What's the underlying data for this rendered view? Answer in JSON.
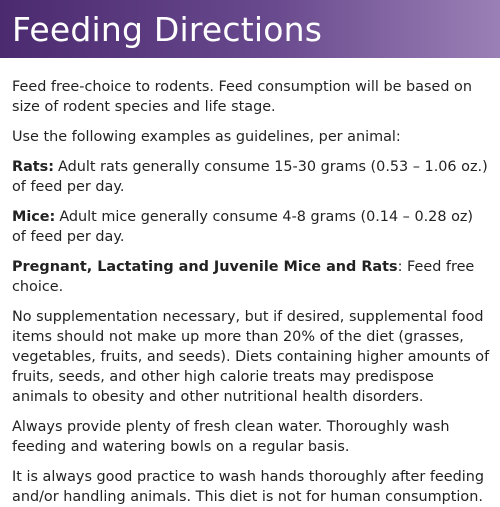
{
  "header": {
    "title": "Feeding Directions"
  },
  "paragraphs": [
    {
      "text": "Feed free-choice to rodents. Feed consumption will be based on size of rodent species and life stage."
    },
    {
      "text": "Use the following examples as guidelines, per animal:"
    },
    {
      "label": "Rats:",
      "text": "Adult rats generally consume 15-30 grams (0.53 – 1.06 oz.) of feed per day."
    },
    {
      "label": "Mice:",
      "text": "Adult mice generally consume 4-8 grams (0.14 – 0.28 oz) of feed per day."
    },
    {
      "label": "Pregnant, Lactating and Juvenile Mice and Rats",
      "text": ": Feed free choice."
    },
    {
      "text": "No supplementation necessary, but if desired, supplemental food items should not make up more than 20% of the diet (grasses, vegetables, fruits, and seeds). Diets containing higher amounts of fruits, seeds, and other high calorie treats may predispose animals to obesity and other nutritional health disorders."
    },
    {
      "text": "Always provide plenty of fresh clean water. Thoroughly wash feeding and watering bowls on a regular basis."
    },
    {
      "text": "It is always good practice to wash hands thoroughly after feeding and/or handling animals. This diet is not for human consumption."
    }
  ]
}
